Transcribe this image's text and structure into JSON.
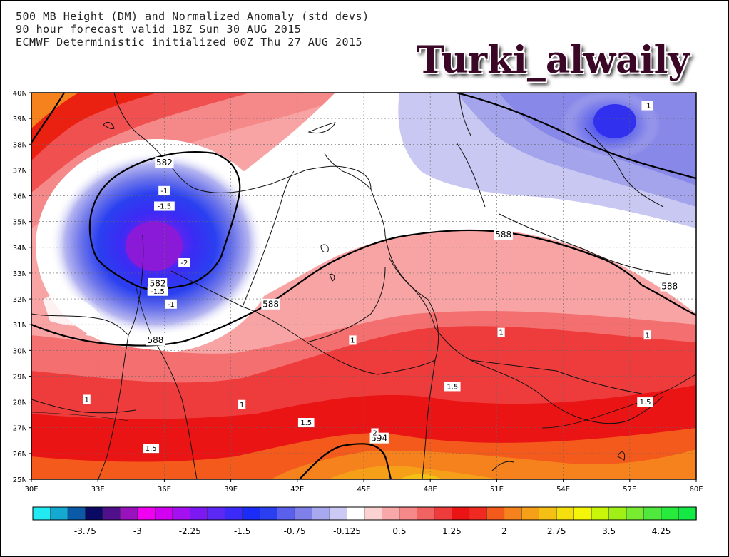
{
  "header": {
    "line1": "500 MB Height (DM) and Normalized Anomaly (std devs)",
    "line2": "90 hour forecast valid 18Z Sun 30 AUG 2015",
    "line3": "ECMWF Deterministic initialized 00Z Thu 27 AUG 2015"
  },
  "watermark": "Turki_alwaily",
  "map": {
    "lon_range": [
      30,
      60
    ],
    "lat_range": [
      25,
      40
    ],
    "lon_ticks": [
      "30E",
      "33E",
      "36E",
      "39E",
      "42E",
      "45E",
      "48E",
      "51E",
      "54E",
      "57E",
      "60E"
    ],
    "lat_ticks": [
      "40N",
      "39N",
      "38N",
      "37N",
      "36N",
      "35N",
      "34N",
      "33N",
      "32N",
      "31N",
      "30N",
      "29N",
      "28N",
      "27N",
      "26N",
      "25N"
    ],
    "height_contours_dm": [
      582,
      588,
      594
    ],
    "height_labels": [
      {
        "text": "582",
        "lon": 36.0,
        "lat": 37.3
      },
      {
        "text": "582",
        "lon": 35.7,
        "lat": 32.6
      },
      {
        "text": "588",
        "lon": 35.6,
        "lat": 30.4
      },
      {
        "text": "588",
        "lon": 40.8,
        "lat": 31.8
      },
      {
        "text": "588",
        "lon": 51.3,
        "lat": 34.5
      },
      {
        "text": "588",
        "lon": 58.8,
        "lat": 32.5
      },
      {
        "text": "594",
        "lon": 45.7,
        "lat": 26.6
      }
    ],
    "anomaly_labels": [
      {
        "text": "-1",
        "lon": 36.0,
        "lat": 36.2
      },
      {
        "text": "-1.5",
        "lon": 36.0,
        "lat": 35.6
      },
      {
        "text": "-2",
        "lon": 36.9,
        "lat": 33.4
      },
      {
        "text": "-1.5",
        "lon": 35.7,
        "lat": 32.3
      },
      {
        "text": "-1",
        "lon": 36.3,
        "lat": 31.8
      },
      {
        "text": "-1",
        "lon": 57.8,
        "lat": 39.5
      },
      {
        "text": "1",
        "lon": 44.5,
        "lat": 30.4
      },
      {
        "text": "1",
        "lon": 51.2,
        "lat": 30.7
      },
      {
        "text": "1",
        "lon": 57.8,
        "lat": 30.6
      },
      {
        "text": "1",
        "lon": 32.5,
        "lat": 28.1
      },
      {
        "text": "1",
        "lon": 39.5,
        "lat": 27.9
      },
      {
        "text": "1.5",
        "lon": 49.0,
        "lat": 28.6
      },
      {
        "text": "1.5",
        "lon": 57.7,
        "lat": 28.0
      },
      {
        "text": "1.5",
        "lon": 42.4,
        "lat": 27.2
      },
      {
        "text": "1.5",
        "lon": 35.4,
        "lat": 26.2
      },
      {
        "text": "2",
        "lon": 45.5,
        "lat": 26.8
      }
    ]
  },
  "colorbar": {
    "colors": [
      "#22eaf2",
      "#14a9d0",
      "#0a5aa8",
      "#0a0a64",
      "#50108c",
      "#9a12be",
      "#f000f0",
      "#d200f0",
      "#a510f0",
      "#7c19f2",
      "#5c28f4",
      "#3c2bf8",
      "#1c2cf8",
      "#2a40f0",
      "#5a60ec",
      "#8080ea",
      "#a8a8ee",
      "#cccaf4",
      "#ffffff",
      "#fbd2d2",
      "#f8a8a8",
      "#f58888",
      "#f16262",
      "#ee3c3c",
      "#ea1414",
      "#f02a20",
      "#f45a1c",
      "#f5821c",
      "#f5a018",
      "#f5c014",
      "#f5e00e",
      "#f5f50a",
      "#c8f50a",
      "#a0f018",
      "#78ec30",
      "#50e83c",
      "#28ea3c",
      "#14ea46"
    ],
    "labels": [
      "-3.75",
      "-3",
      "-2.25",
      "-1.5",
      "-0.75",
      "-0.125",
      "0.5",
      "1.25",
      "2",
      "2.75",
      "3.5",
      "4.25"
    ]
  }
}
